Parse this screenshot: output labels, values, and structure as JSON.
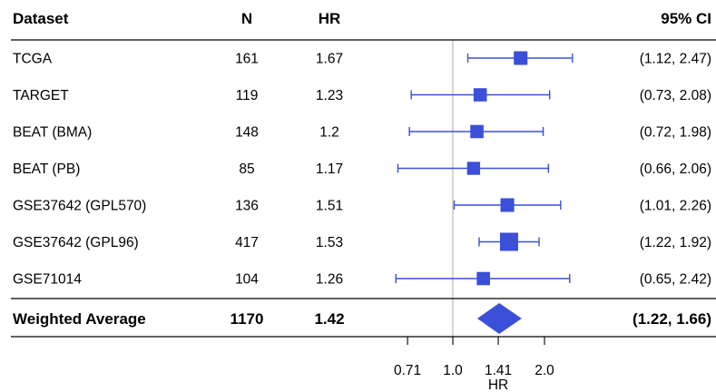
{
  "chart_data": {
    "type": "forest",
    "xscale": "log2",
    "columns": {
      "dataset": "Dataset",
      "n": "N",
      "hr": "HR",
      "ci": "95% CI"
    },
    "rows": [
      {
        "dataset": "TCGA",
        "n": "161",
        "hr": 1.67,
        "lower": 1.12,
        "upper": 2.47,
        "hr_text": "1.67",
        "ci_text": "(1.12, 2.47)",
        "weight": 0.45
      },
      {
        "dataset": "TARGET",
        "n": "119",
        "hr": 1.23,
        "lower": 0.73,
        "upper": 2.08,
        "hr_text": "1.23",
        "ci_text": "(0.73, 2.08)",
        "weight": 0.4
      },
      {
        "dataset": "BEAT (BMA)",
        "n": "148",
        "hr": 1.2,
        "lower": 0.72,
        "upper": 1.98,
        "hr_text": "1.2",
        "ci_text": "(0.72, 1.98)",
        "weight": 0.4
      },
      {
        "dataset": "BEAT (PB)",
        "n": "85",
        "hr": 1.17,
        "lower": 0.66,
        "upper": 2.06,
        "hr_text": "1.17",
        "ci_text": "(0.66, 2.06)",
        "weight": 0.37
      },
      {
        "dataset": "GSE37642 (GPL570)",
        "n": "136",
        "hr": 1.51,
        "lower": 1.01,
        "upper": 2.26,
        "hr_text": "1.51",
        "ci_text": "(1.01, 2.26)",
        "weight": 0.45
      },
      {
        "dataset": "GSE37642 (GPL96)",
        "n": "417",
        "hr": 1.53,
        "lower": 1.22,
        "upper": 1.92,
        "hr_text": "1.53",
        "ci_text": "(1.22, 1.92)",
        "weight": 1.0
      },
      {
        "dataset": "GSE71014",
        "n": "104",
        "hr": 1.26,
        "lower": 0.65,
        "upper": 2.42,
        "hr_text": "1.26",
        "ci_text": "(0.65, 2.42)",
        "weight": 0.4
      }
    ],
    "summary": {
      "dataset": "Weighted Average",
      "n": "1170",
      "hr": 1.42,
      "lower": 1.22,
      "upper": 1.66,
      "hr_text": "1.42",
      "ci_text": "(1.22, 1.66)"
    },
    "reference_line": 1.0,
    "ticks": [
      {
        "value": 0.71,
        "label": "0.71"
      },
      {
        "value": 1.0,
        "label": "1.0"
      },
      {
        "value": 1.41,
        "label": "1.41"
      },
      {
        "value": 2.0,
        "label": "2.0"
      }
    ],
    "xlabel": "HR",
    "colors": {
      "marker": "#3b4fd8",
      "reference": "#bbbbbb",
      "rule": "#000000"
    }
  }
}
